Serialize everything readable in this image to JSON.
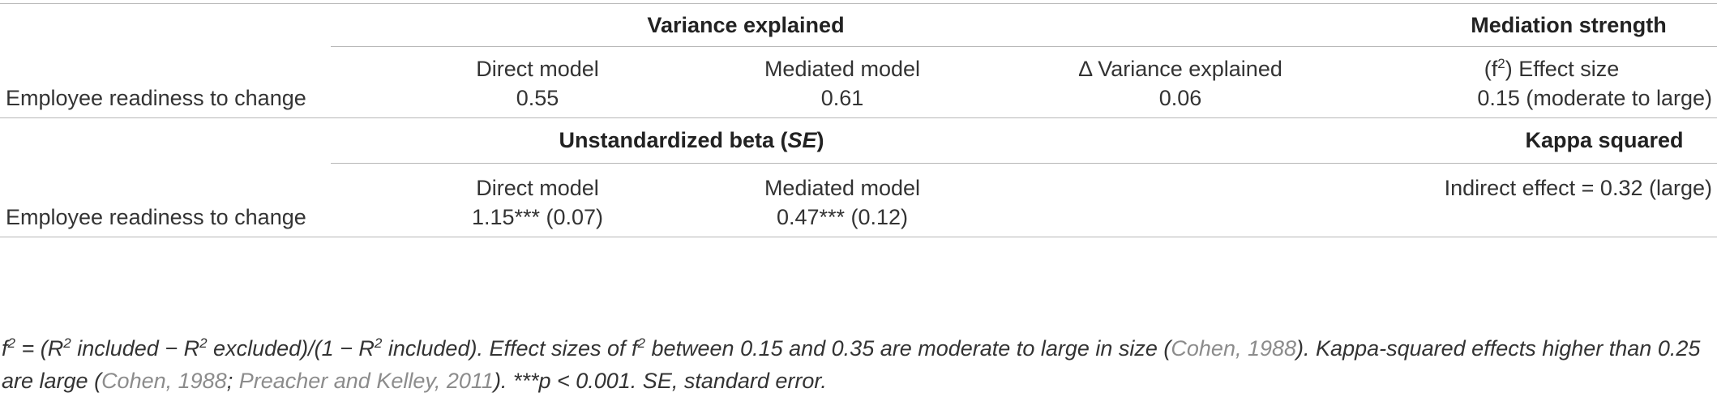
{
  "headers": {
    "variance_explained": "Variance explained",
    "mediation_strength": "Mediation strength",
    "beta_prefix": "Unstandardized beta (",
    "beta_se": "SE",
    "beta_suffix": ")",
    "kappa_squared": "Kappa squared"
  },
  "subheaders1": {
    "direct_model": "Direct model",
    "mediated_model": "Mediated model",
    "delta": "Δ Variance explained",
    "effect_open": "(f",
    "effect_sup": "2",
    "effect_close": ") Effect size"
  },
  "row1": {
    "label": "Employee readiness to change",
    "direct": "0.55",
    "mediated": "0.61",
    "delta": "0.06",
    "effect": "0.15 (moderate to large)"
  },
  "subheaders2": {
    "direct_model": "Direct model",
    "mediated_model": "Mediated model",
    "indirect": "Indirect effect = 0.32 (large)"
  },
  "row2": {
    "label": "Employee readiness to change",
    "direct": "1.15*** (0.07)",
    "mediated": "0.47*** (0.12)"
  },
  "footnote": {
    "f": "f",
    "two": "2",
    "p1": " = (R",
    "p2": " included − R",
    "p3": " excluded)/(1 − R",
    "p4": " included). Effect sizes of f",
    "p5": " between 0.15 and 0.35 are moderate to large in size (",
    "cite1": "Cohen, 1988",
    "p6": "). Kappa-squared effects higher than 0.25 are large (",
    "cite2": "Cohen, 1988",
    "p7": "; ",
    "cite3": "Preacher and Kelley, 2011",
    "p8": "). ***p < 0.001. SE, standard error."
  }
}
